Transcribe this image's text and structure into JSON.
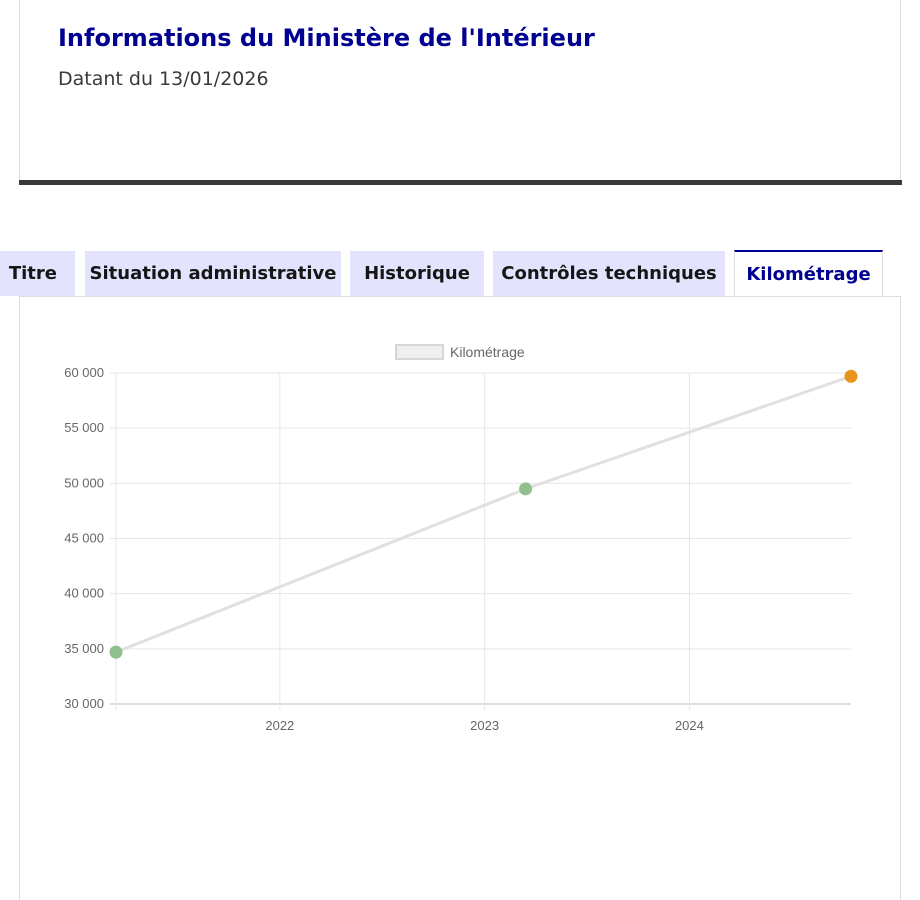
{
  "header": {
    "title": "Informations du Ministère de l'Intérieur",
    "date_line": "Datant du 13/01/2026"
  },
  "tabs": [
    {
      "label": "Titre",
      "active": false
    },
    {
      "label": "Situation administrative",
      "active": false
    },
    {
      "label": "Historique",
      "active": false
    },
    {
      "label": "Contrôles techniques",
      "active": false
    },
    {
      "label": "Kilométrage",
      "active": true
    }
  ],
  "colors": {
    "brand_blue": "#000091",
    "tab_inactive_bg": "#e3e3fd",
    "line_color": "#e0e0e0",
    "point_green": "#8fbf8c",
    "point_orange": "#e8941a"
  },
  "chart_data": {
    "type": "line",
    "legend": [
      "Kilométrage"
    ],
    "legend_position": "top-center",
    "series": [
      {
        "name": "Kilométrage",
        "points": [
          {
            "x": "2021-03-15",
            "y": 34700,
            "color": "#8fbf8c"
          },
          {
            "x": "2023-03-15",
            "y": 49500,
            "color": "#8fbf8c"
          },
          {
            "x": "2024-10-15",
            "y": 59700,
            "color": "#e8941a"
          }
        ]
      }
    ],
    "x_ticks": [
      "2022",
      "2023",
      "2024"
    ],
    "y_ticks": [
      "30 000",
      "35 000",
      "40 000",
      "45 000",
      "50 000",
      "55 000",
      "60 000"
    ],
    "y_tick_values": [
      30000,
      35000,
      40000,
      45000,
      50000,
      55000,
      60000
    ],
    "ylim": [
      30000,
      60000
    ],
    "xlim": [
      "2021-03-15",
      "2024-10-15"
    ],
    "grid": true
  }
}
